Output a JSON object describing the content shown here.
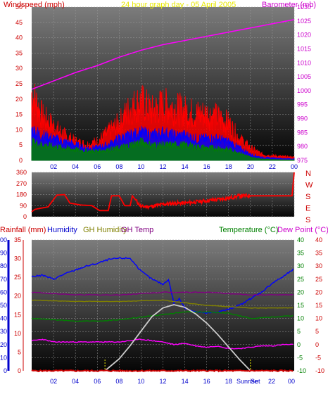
{
  "colors": {
    "wind": "#ff0000",
    "gust": "#0000ff",
    "avg": "#008000",
    "baro": "#ff00ff",
    "dir": "#ff0000",
    "hum": "#0000ff",
    "gh_hum": "#808000",
    "gh_temp": "#800080",
    "temp": "#008000",
    "dew": "#ff00ff",
    "sun": "#cccccc",
    "rain": "#cc0000",
    "label_red": "#cc0000",
    "label_title": "#e8e800"
  },
  "chart_data": [
    {
      "type": "line",
      "title": "24 hour graph day - 05 April 2005",
      "ylabel": "Windspeed (mph)",
      "y2label": "Barometer (mb)",
      "ylim": [
        0,
        50
      ],
      "y2lim": [
        975,
        1030
      ],
      "grid": true,
      "x_ticks": [
        "02",
        "04",
        "06",
        "08",
        "10",
        "12",
        "14",
        "16",
        "18",
        "20",
        "22",
        "00"
      ],
      "y_ticks": [
        "0",
        "5",
        "10",
        "15",
        "20",
        "25",
        "30",
        "35",
        "40",
        "45",
        "50"
      ],
      "y2_ticks": [
        "975",
        "980",
        "985",
        "990",
        "995",
        "1000",
        "1005",
        "1010",
        "1015",
        "1020",
        "1025",
        "1030"
      ],
      "series": [
        {
          "name": "Wind speed",
          "color_key": "wind",
          "x": [
            0,
            1,
            2,
            3,
            4,
            5,
            6,
            7,
            8,
            9,
            10,
            11,
            12,
            13,
            14,
            15,
            16,
            17,
            18,
            19,
            20,
            21,
            22,
            23,
            24
          ],
          "values": [
            22,
            14,
            11,
            8,
            6,
            5,
            6,
            9,
            12,
            17,
            19,
            16,
            18,
            17,
            16,
            15,
            15,
            14,
            12,
            7,
            4,
            2,
            1.5,
            1.2,
            1
          ]
        },
        {
          "name": "Gust",
          "color_key": "gust",
          "x": [
            0,
            1,
            2,
            3,
            4,
            5,
            6,
            7,
            8,
            9,
            10,
            11,
            12,
            13,
            14,
            15,
            16,
            17,
            18,
            19,
            20,
            21,
            22,
            23,
            24
          ],
          "values": [
            10,
            8,
            7,
            6,
            5,
            4,
            4,
            5,
            7,
            8,
            9,
            8,
            9,
            8,
            8,
            7,
            7,
            7,
            6,
            4,
            2,
            1,
            0.8,
            0.6,
            0.5
          ]
        },
        {
          "name": "Average",
          "color_key": "avg",
          "x": [
            0,
            1,
            2,
            3,
            4,
            5,
            6,
            7,
            8,
            9,
            10,
            11,
            12,
            13,
            14,
            15,
            16,
            17,
            18,
            19,
            20,
            21,
            22,
            23,
            24
          ],
          "values": [
            6,
            5,
            4.5,
            4,
            3.5,
            3,
            3,
            3.5,
            4,
            5,
            6,
            5,
            5,
            5,
            5,
            4.5,
            4,
            4,
            3.5,
            2.5,
            1,
            0.5,
            0.3,
            0.2,
            0.2
          ]
        },
        {
          "name": "Barometer",
          "axis": "y2",
          "color_key": "baro",
          "x": [
            0,
            2,
            4,
            6,
            8,
            10,
            12,
            14,
            16,
            18,
            20,
            22,
            24
          ],
          "values": [
            1000.5,
            1003.5,
            1006.5,
            1009,
            1012,
            1014.5,
            1016.5,
            1018,
            1019.5,
            1021,
            1022.5,
            1024,
            1025.5
          ]
        }
      ]
    },
    {
      "type": "line",
      "ylim": [
        0,
        360
      ],
      "y_ticks": [
        "0",
        "90",
        "180",
        "270",
        "360"
      ],
      "y2_labels": [
        "N",
        "W",
        "S",
        "E",
        "S"
      ],
      "grid": true,
      "series": [
        {
          "name": "Wind direction",
          "color_key": "dir",
          "x": [
            0,
            0.3,
            1.5,
            2.3,
            3,
            3.5,
            4.5,
            5.5,
            6.2,
            7,
            7.3,
            8,
            8.5,
            9,
            9.2,
            10,
            11,
            12,
            13,
            14,
            15,
            16,
            17,
            18,
            19,
            20,
            21,
            22,
            23,
            23.8,
            24
          ],
          "values": [
            40,
            60,
            80,
            175,
            180,
            110,
            95,
            90,
            50,
            50,
            170,
            170,
            90,
            90,
            170,
            80,
            85,
            100,
            110,
            110,
            120,
            130,
            140,
            150,
            170,
            170,
            170,
            170,
            170,
            170,
            360
          ]
        }
      ]
    },
    {
      "type": "line",
      "labels": [
        "Rainfall (mm)",
        "Humidity",
        "GH Humidity",
        "GH Temp",
        "Temperature (°C)",
        "Dew Point (°C)"
      ],
      "hum_ticks": [
        "0",
        "10",
        "20",
        "30",
        "40",
        "50",
        "60",
        "70",
        "80",
        "90",
        "100"
      ],
      "rain_ticks": [
        "0",
        "5",
        "10",
        "15",
        "20",
        "25",
        "30",
        "35"
      ],
      "temp_ticks": [
        "-10",
        "-5",
        "0",
        "5",
        "10",
        "15",
        "20",
        "25",
        "30",
        "35",
        "40"
      ],
      "x_ticks": [
        "02",
        "04",
        "06",
        "08",
        "10",
        "12",
        "14",
        "16",
        "18"
      ],
      "sunrise_label": "Sunrise",
      "sunset_label": "Set",
      "end_tick": "22",
      "last_tick": "00",
      "sunrise_hour": 6.7,
      "sunset_hour": 20.0,
      "temp_range": [
        -10,
        40
      ],
      "series": [
        {
          "name": "Humidity",
          "color_key": "hum",
          "scale": "hum",
          "x": [
            0,
            1,
            2,
            3,
            4,
            5,
            6,
            7,
            8,
            9,
            10,
            11,
            12,
            12.5,
            13,
            13.5,
            14,
            15,
            16,
            17,
            18,
            19,
            20,
            21,
            22,
            23,
            24
          ],
          "values": [
            72,
            73,
            70,
            74,
            77,
            80,
            82,
            85,
            86,
            86,
            76,
            70,
            66,
            70,
            52,
            55,
            48,
            45,
            44,
            45,
            47,
            50,
            55,
            60,
            67,
            72,
            78
          ]
        },
        {
          "name": "Temperature",
          "color_key": "temp",
          "scale": "temp",
          "x": [
            0,
            2,
            4,
            6,
            8,
            10,
            12,
            14,
            16,
            18,
            20,
            22,
            24
          ],
          "values": [
            10,
            9.5,
            9,
            9,
            9.5,
            10.5,
            11.5,
            12.5,
            12.5,
            12,
            10,
            10.5,
            11
          ]
        },
        {
          "name": "Dew Point",
          "color_key": "dew",
          "scale": "temp",
          "x": [
            0,
            1,
            2,
            4,
            6,
            8,
            10,
            12,
            13,
            14,
            15,
            16,
            17,
            18,
            19,
            20,
            21,
            22,
            23,
            24
          ],
          "values": [
            1.5,
            2,
            1,
            1,
            1,
            1,
            2,
            1,
            0,
            0.5,
            -0.5,
            -1,
            -0.5,
            -1.5,
            -1.5,
            -1,
            -0.5,
            -0.5,
            0,
            0
          ]
        },
        {
          "name": "GH Temp",
          "color_key": "gh_temp",
          "scale": "temp",
          "x": [
            0,
            4,
            8,
            12,
            16,
            20,
            24
          ],
          "values": [
            20,
            19,
            19,
            20,
            20,
            19,
            19
          ]
        },
        {
          "name": "GH Humidity",
          "color_key": "gh_hum",
          "scale": "hum",
          "x": [
            0,
            4,
            8,
            12,
            16,
            20,
            24
          ],
          "values": [
            54,
            53,
            53,
            54,
            50,
            48,
            48
          ]
        },
        {
          "name": "Solar",
          "color_key": "sun",
          "scale": "sun",
          "x": [
            6.7,
            8,
            9,
            10,
            11,
            12,
            13,
            14,
            15,
            16,
            17,
            18,
            19,
            20
          ],
          "values": [
            0,
            0.18,
            0.38,
            0.6,
            0.82,
            0.95,
            1.0,
            0.96,
            0.86,
            0.72,
            0.55,
            0.36,
            0.17,
            0
          ]
        },
        {
          "name": "Rainfall",
          "color_key": "rain",
          "scale": "rain",
          "x": [
            0,
            24
          ],
          "values": [
            0,
            0
          ]
        }
      ]
    }
  ]
}
